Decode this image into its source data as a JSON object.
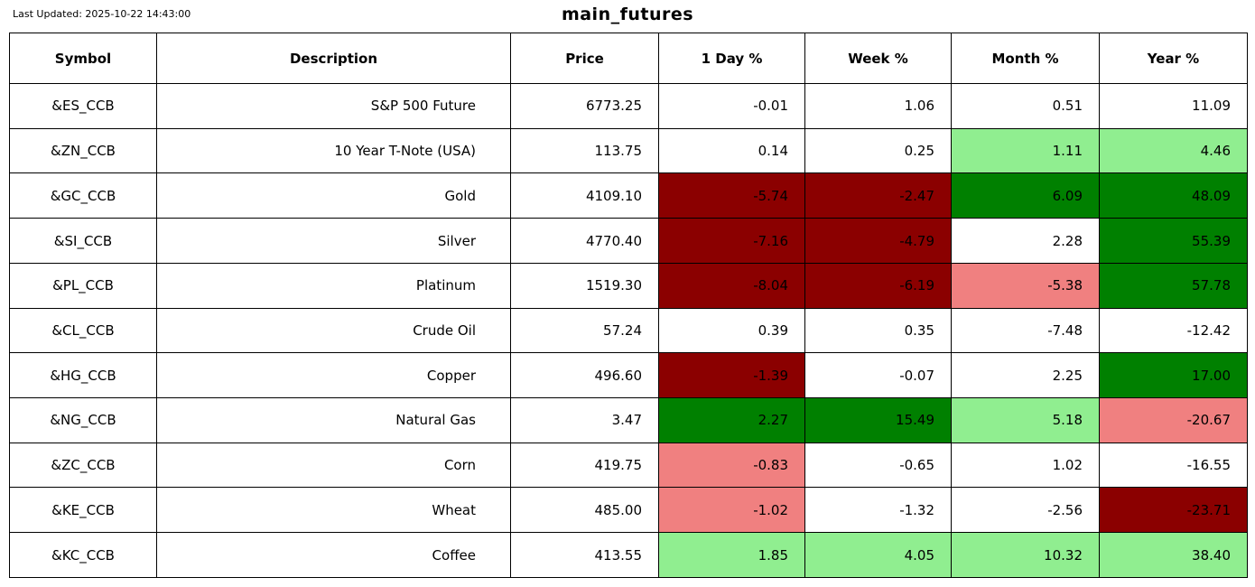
{
  "meta": {
    "last_updated": "Last Updated: 2025-10-22 14:43:00",
    "title": "main_futures"
  },
  "colors": {
    "white": "#ffffff",
    "darkred": "#8b0000",
    "lightred": "#f08080",
    "darkgreen": "#008000",
    "lightgreen": "#90ee90"
  },
  "chart_data": {
    "type": "table",
    "title": "main_futures",
    "columns": [
      "Symbol",
      "Description",
      "Price",
      "1 Day %",
      "Week %",
      "Month %",
      "Year %"
    ],
    "pct_columns": [
      "1day",
      "week",
      "month",
      "year"
    ],
    "rows": [
      {
        "symbol": "&ES_CCB",
        "description": "S&P 500 Future",
        "price": "6773.25",
        "changes": [
          {
            "value": "-0.01",
            "bg": "white"
          },
          {
            "value": "1.06",
            "bg": "white"
          },
          {
            "value": "0.51",
            "bg": "white"
          },
          {
            "value": "11.09",
            "bg": "white"
          }
        ]
      },
      {
        "symbol": "&ZN_CCB",
        "description": "10 Year T-Note (USA)",
        "price": "113.75",
        "changes": [
          {
            "value": "0.14",
            "bg": "white"
          },
          {
            "value": "0.25",
            "bg": "white"
          },
          {
            "value": "1.11",
            "bg": "lightgreen"
          },
          {
            "value": "4.46",
            "bg": "lightgreen"
          }
        ]
      },
      {
        "symbol": "&GC_CCB",
        "description": "Gold",
        "price": "4109.10",
        "changes": [
          {
            "value": "-5.74",
            "bg": "darkred"
          },
          {
            "value": "-2.47",
            "bg": "darkred"
          },
          {
            "value": "6.09",
            "bg": "darkgreen"
          },
          {
            "value": "48.09",
            "bg": "darkgreen"
          }
        ]
      },
      {
        "symbol": "&SI_CCB",
        "description": "Silver",
        "price": "4770.40",
        "changes": [
          {
            "value": "-7.16",
            "bg": "darkred"
          },
          {
            "value": "-4.79",
            "bg": "darkred"
          },
          {
            "value": "2.28",
            "bg": "white"
          },
          {
            "value": "55.39",
            "bg": "darkgreen"
          }
        ]
      },
      {
        "symbol": "&PL_CCB",
        "description": "Platinum",
        "price": "1519.30",
        "changes": [
          {
            "value": "-8.04",
            "bg": "darkred"
          },
          {
            "value": "-6.19",
            "bg": "darkred"
          },
          {
            "value": "-5.38",
            "bg": "lightred"
          },
          {
            "value": "57.78",
            "bg": "darkgreen"
          }
        ]
      },
      {
        "symbol": "&CL_CCB",
        "description": "Crude Oil",
        "price": "57.24",
        "changes": [
          {
            "value": "0.39",
            "bg": "white"
          },
          {
            "value": "0.35",
            "bg": "white"
          },
          {
            "value": "-7.48",
            "bg": "white"
          },
          {
            "value": "-12.42",
            "bg": "white"
          }
        ]
      },
      {
        "symbol": "&HG_CCB",
        "description": "Copper",
        "price": "496.60",
        "changes": [
          {
            "value": "-1.39",
            "bg": "darkred"
          },
          {
            "value": "-0.07",
            "bg": "white"
          },
          {
            "value": "2.25",
            "bg": "white"
          },
          {
            "value": "17.00",
            "bg": "darkgreen"
          }
        ]
      },
      {
        "symbol": "&NG_CCB",
        "description": "Natural Gas",
        "price": "3.47",
        "changes": [
          {
            "value": "2.27",
            "bg": "darkgreen"
          },
          {
            "value": "15.49",
            "bg": "darkgreen"
          },
          {
            "value": "5.18",
            "bg": "lightgreen"
          },
          {
            "value": "-20.67",
            "bg": "lightred"
          }
        ]
      },
      {
        "symbol": "&ZC_CCB",
        "description": "Corn",
        "price": "419.75",
        "changes": [
          {
            "value": "-0.83",
            "bg": "lightred"
          },
          {
            "value": "-0.65",
            "bg": "white"
          },
          {
            "value": "1.02",
            "bg": "white"
          },
          {
            "value": "-16.55",
            "bg": "white"
          }
        ]
      },
      {
        "symbol": "&KE_CCB",
        "description": "Wheat",
        "price": "485.00",
        "changes": [
          {
            "value": "-1.02",
            "bg": "lightred"
          },
          {
            "value": "-1.32",
            "bg": "white"
          },
          {
            "value": "-2.56",
            "bg": "white"
          },
          {
            "value": "-23.71",
            "bg": "darkred"
          }
        ]
      },
      {
        "symbol": "&KC_CCB",
        "description": "Coffee",
        "price": "413.55",
        "changes": [
          {
            "value": "1.85",
            "bg": "lightgreen"
          },
          {
            "value": "4.05",
            "bg": "lightgreen"
          },
          {
            "value": "10.32",
            "bg": "lightgreen"
          },
          {
            "value": "38.40",
            "bg": "lightgreen"
          }
        ]
      }
    ]
  }
}
